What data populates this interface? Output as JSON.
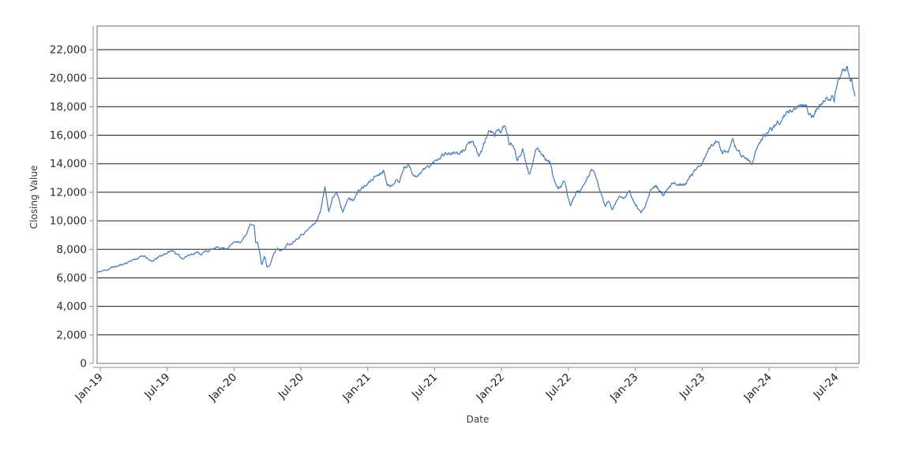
{
  "chart_data": {
    "type": "line",
    "title": "",
    "xlabel": "Date",
    "ylabel": "Closing Value",
    "legend": "none",
    "x_tick_labels": [
      "Jan-19",
      "Jul-19",
      "Jan-20",
      "Jul-20",
      "Jan-21",
      "Jul-21",
      "Jan-22",
      "Jul-22",
      "Jan-23",
      "Jul-23",
      "Jan-24",
      "Jul-24"
    ],
    "y_ticks": [
      0,
      2000,
      4000,
      6000,
      8000,
      10000,
      12000,
      14000,
      16000,
      18000,
      20000,
      22000
    ],
    "y_tick_labels": [
      "0",
      "2,000",
      "4,000",
      "6,000",
      "8,000",
      "10,000",
      "12,000",
      "14,000",
      "16,000",
      "18,000",
      "20,000",
      "22,000"
    ],
    "ylim": [
      0,
      23650
    ],
    "x_range": [
      "Jan-2019",
      "Aug-2024"
    ],
    "grid": {
      "horizontal": true,
      "color": "#1a1a1a"
    },
    "style": {
      "line_color": "#4a7ebb",
      "line_width": 1.25,
      "axis_color": "#8f8f8f",
      "background": "#ffffff"
    },
    "series": [
      {
        "name": "Closing Value",
        "t_unit": "months_since_Jan_2019",
        "anchors": [
          [
            -0.3,
            6380
          ],
          [
            0,
            6420
          ],
          [
            0.5,
            6550
          ],
          [
            1,
            6720
          ],
          [
            1.5,
            6800
          ],
          [
            2,
            6950
          ],
          [
            2.5,
            7120
          ],
          [
            3,
            7300
          ],
          [
            3.5,
            7420
          ],
          [
            4,
            7560
          ],
          [
            4.3,
            7380
          ],
          [
            4.6,
            7080
          ],
          [
            5,
            7310
          ],
          [
            5.5,
            7550
          ],
          [
            6,
            7780
          ],
          [
            6.6,
            7910
          ],
          [
            6.9,
            7620
          ],
          [
            7.3,
            7350
          ],
          [
            7.7,
            7550
          ],
          [
            8,
            7620
          ],
          [
            8.6,
            7820
          ],
          [
            9,
            7700
          ],
          [
            9.5,
            7850
          ],
          [
            10,
            7980
          ],
          [
            10.4,
            8050
          ],
          [
            10.8,
            8150
          ],
          [
            11.2,
            8080
          ],
          [
            11.6,
            8220
          ],
          [
            12,
            8500
          ],
          [
            12.4,
            8650
          ],
          [
            12.6,
            8520
          ],
          [
            13,
            8900
          ],
          [
            13.46,
            9750
          ],
          [
            13.65,
            9550
          ],
          [
            13.8,
            9700
          ],
          [
            13.95,
            8400
          ],
          [
            14.1,
            8560
          ],
          [
            14.5,
            6940
          ],
          [
            14.73,
            7590
          ],
          [
            14.97,
            6670
          ],
          [
            15.21,
            6830
          ],
          [
            15.56,
            7720
          ],
          [
            15.91,
            8150
          ],
          [
            16.3,
            7950
          ],
          [
            16.74,
            8280
          ],
          [
            17.2,
            8500
          ],
          [
            17.7,
            8900
          ],
          [
            18.15,
            9170
          ],
          [
            18.6,
            9350
          ],
          [
            19.1,
            9720
          ],
          [
            19.5,
            10100
          ],
          [
            19.8,
            10900
          ],
          [
            20.16,
            12350
          ],
          [
            20.5,
            10850
          ],
          [
            20.8,
            11500
          ],
          [
            21.2,
            12100
          ],
          [
            21.5,
            11500
          ],
          [
            21.8,
            10750
          ],
          [
            22.3,
            11600
          ],
          [
            22.6,
            11450
          ],
          [
            23,
            11900
          ],
          [
            23.5,
            12300
          ],
          [
            24,
            12550
          ],
          [
            24.6,
            13100
          ],
          [
            25,
            13300
          ],
          [
            25.4,
            13650
          ],
          [
            25.7,
            12900
          ],
          [
            26,
            12350
          ],
          [
            26.5,
            12950
          ],
          [
            26.8,
            12700
          ],
          [
            27.3,
            13800
          ],
          [
            27.7,
            13900
          ],
          [
            28,
            13500
          ],
          [
            28.3,
            13100
          ],
          [
            28.7,
            13450
          ],
          [
            29,
            13600
          ],
          [
            29.4,
            13740
          ],
          [
            30,
            14110
          ],
          [
            30.4,
            14500
          ],
          [
            30.8,
            14760
          ],
          [
            31.2,
            14800
          ],
          [
            31.5,
            14700
          ],
          [
            31.9,
            14850
          ],
          [
            32.2,
            14550
          ],
          [
            32.6,
            14900
          ],
          [
            32.9,
            15400
          ],
          [
            33.3,
            15590
          ],
          [
            33.7,
            14850
          ],
          [
            34,
            14480
          ],
          [
            34.4,
            15300
          ],
          [
            34.8,
            16100
          ],
          [
            35.1,
            16450
          ],
          [
            35.4,
            15950
          ],
          [
            35.7,
            16500
          ],
          [
            36,
            16300
          ],
          [
            36.3,
            16550
          ],
          [
            36.7,
            15400
          ],
          [
            37,
            15300
          ],
          [
            37.4,
            14290
          ],
          [
            37.9,
            15130
          ],
          [
            38.5,
            13370
          ],
          [
            39.2,
            15050
          ],
          [
            39.6,
            14800
          ],
          [
            40,
            14400
          ],
          [
            40.4,
            14000
          ],
          [
            40.7,
            12900
          ],
          [
            41.1,
            12070
          ],
          [
            41.6,
            12760
          ],
          [
            42.2,
            11060
          ],
          [
            42.7,
            11980
          ],
          [
            43,
            11850
          ],
          [
            43.4,
            12400
          ],
          [
            44,
            13550
          ],
          [
            44.4,
            13100
          ],
          [
            44.8,
            12170
          ],
          [
            45.3,
            11060
          ],
          [
            45.6,
            11350
          ],
          [
            45.9,
            10780
          ],
          [
            46.5,
            11610
          ],
          [
            47,
            11750
          ],
          [
            47.5,
            11950
          ],
          [
            47.8,
            11400
          ],
          [
            48.2,
            10950
          ],
          [
            48.5,
            10550
          ],
          [
            48.9,
            11250
          ],
          [
            49.4,
            12260
          ],
          [
            50,
            12350
          ],
          [
            50.5,
            11690
          ],
          [
            51.2,
            12430
          ],
          [
            51.9,
            12590
          ],
          [
            52.6,
            12780
          ],
          [
            53.2,
            13300
          ],
          [
            53.6,
            13830
          ],
          [
            54,
            14110
          ],
          [
            54.6,
            14940
          ],
          [
            55.3,
            15680
          ],
          [
            55.8,
            15000
          ],
          [
            56.3,
            14670
          ],
          [
            56.75,
            15400
          ],
          [
            57.2,
            15000
          ],
          [
            57.6,
            14570
          ],
          [
            58,
            14300
          ],
          [
            58.5,
            14110
          ],
          [
            59,
            15100
          ],
          [
            59.4,
            15870
          ],
          [
            59.9,
            16060
          ],
          [
            60.6,
            16800
          ],
          [
            61.35,
            17350
          ],
          [
            61.8,
            17630
          ],
          [
            62.55,
            18000
          ],
          [
            63,
            18100
          ],
          [
            63.3,
            18180
          ],
          [
            63.5,
            17800
          ],
          [
            63.8,
            17170
          ],
          [
            64.3,
            17900
          ],
          [
            64.6,
            18100
          ],
          [
            64.9,
            18240
          ],
          [
            65.2,
            18500
          ],
          [
            65.4,
            18650
          ],
          [
            65.7,
            18830
          ],
          [
            65.85,
            18500
          ],
          [
            66.1,
            19670
          ],
          [
            66.45,
            20000
          ],
          [
            66.7,
            20450
          ],
          [
            67,
            20720
          ],
          [
            67.15,
            20100
          ],
          [
            67.3,
            19900
          ],
          [
            67.38,
            20280
          ],
          [
            67.7,
            18740
          ]
        ]
      }
    ],
    "texture": {
      "seed": 11,
      "decay": 0.82,
      "step_pct": 0.008,
      "samples": 1400
    }
  }
}
